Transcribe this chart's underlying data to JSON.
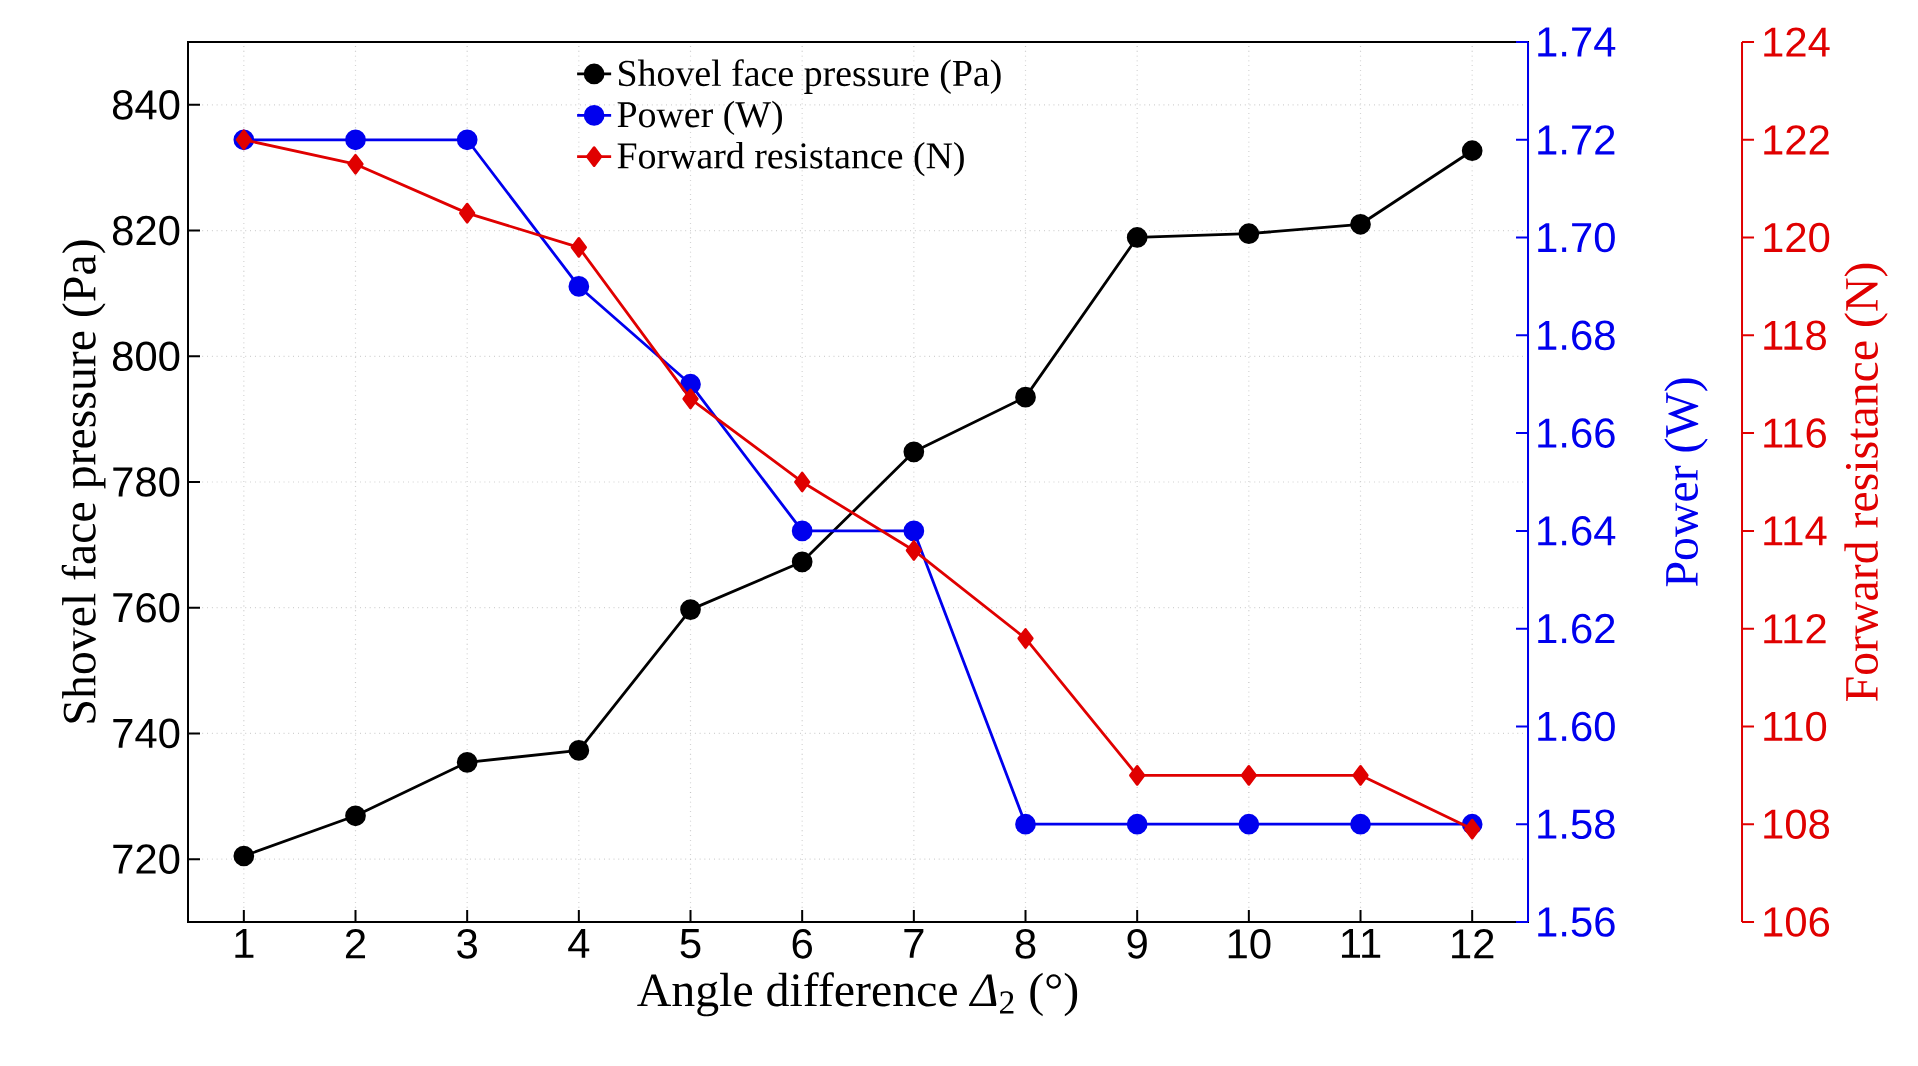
{
  "chart_data": {
    "type": "line",
    "xlabel": "Angle difference *Δ*$_{2}$ (°)",
    "ylabel": "Shovel face pressure (Pa)",
    "y2label": "Power (W)",
    "y3label": "Forward resistance (N)",
    "categories": [
      "1",
      "2",
      "3",
      "4",
      "5",
      "6",
      "7",
      "8",
      "9",
      "10",
      "11",
      "12"
    ],
    "ylim": [
      710,
      850
    ],
    "yticks": [
      720,
      740,
      760,
      780,
      800,
      820,
      840
    ],
    "y2lim": [
      1.56,
      1.74
    ],
    "y2ticks": [
      1.56,
      1.58,
      {
        "value": 1.6,
        "label": "1.60"
      },
      1.62,
      1.64,
      1.66,
      1.68,
      {
        "value": 1.7,
        "label": "1.70"
      },
      1.72,
      1.74
    ],
    "y3lim": [
      106,
      124
    ],
    "y3ticks": [
      106,
      108,
      110,
      112,
      114,
      116,
      118,
      120,
      122,
      124
    ],
    "grid": true,
    "legend": "top",
    "line_style": "solid",
    "series": [
      {
        "name": "Shovel face pressure (Pa)",
        "color": "#000000",
        "marker": "circle",
        "values": [
          720.5,
          726.9,
          735.4,
          737.3,
          759.7,
          767.3,
          784.8,
          793.5,
          818.9,
          819.5,
          821.0,
          832.7
        ]
      },
      {
        "name": "Power (W)",
        "color": "#0000ee",
        "marker": "circle",
        "axis": "y2",
        "values": [
          1.72,
          1.72,
          1.72,
          1.69,
          1.67,
          1.64,
          1.64,
          1.58,
          1.58,
          1.58,
          1.58,
          1.58
        ]
      },
      {
        "name": "Forward resistance (N)",
        "color": "#e00000",
        "marker": "diamond",
        "axis": "y3",
        "values": [
          122.0,
          121.5,
          120.5,
          119.8,
          116.7,
          115.0,
          113.6,
          111.8,
          109.0,
          109.0,
          109.0,
          107.9
        ]
      }
    ]
  }
}
